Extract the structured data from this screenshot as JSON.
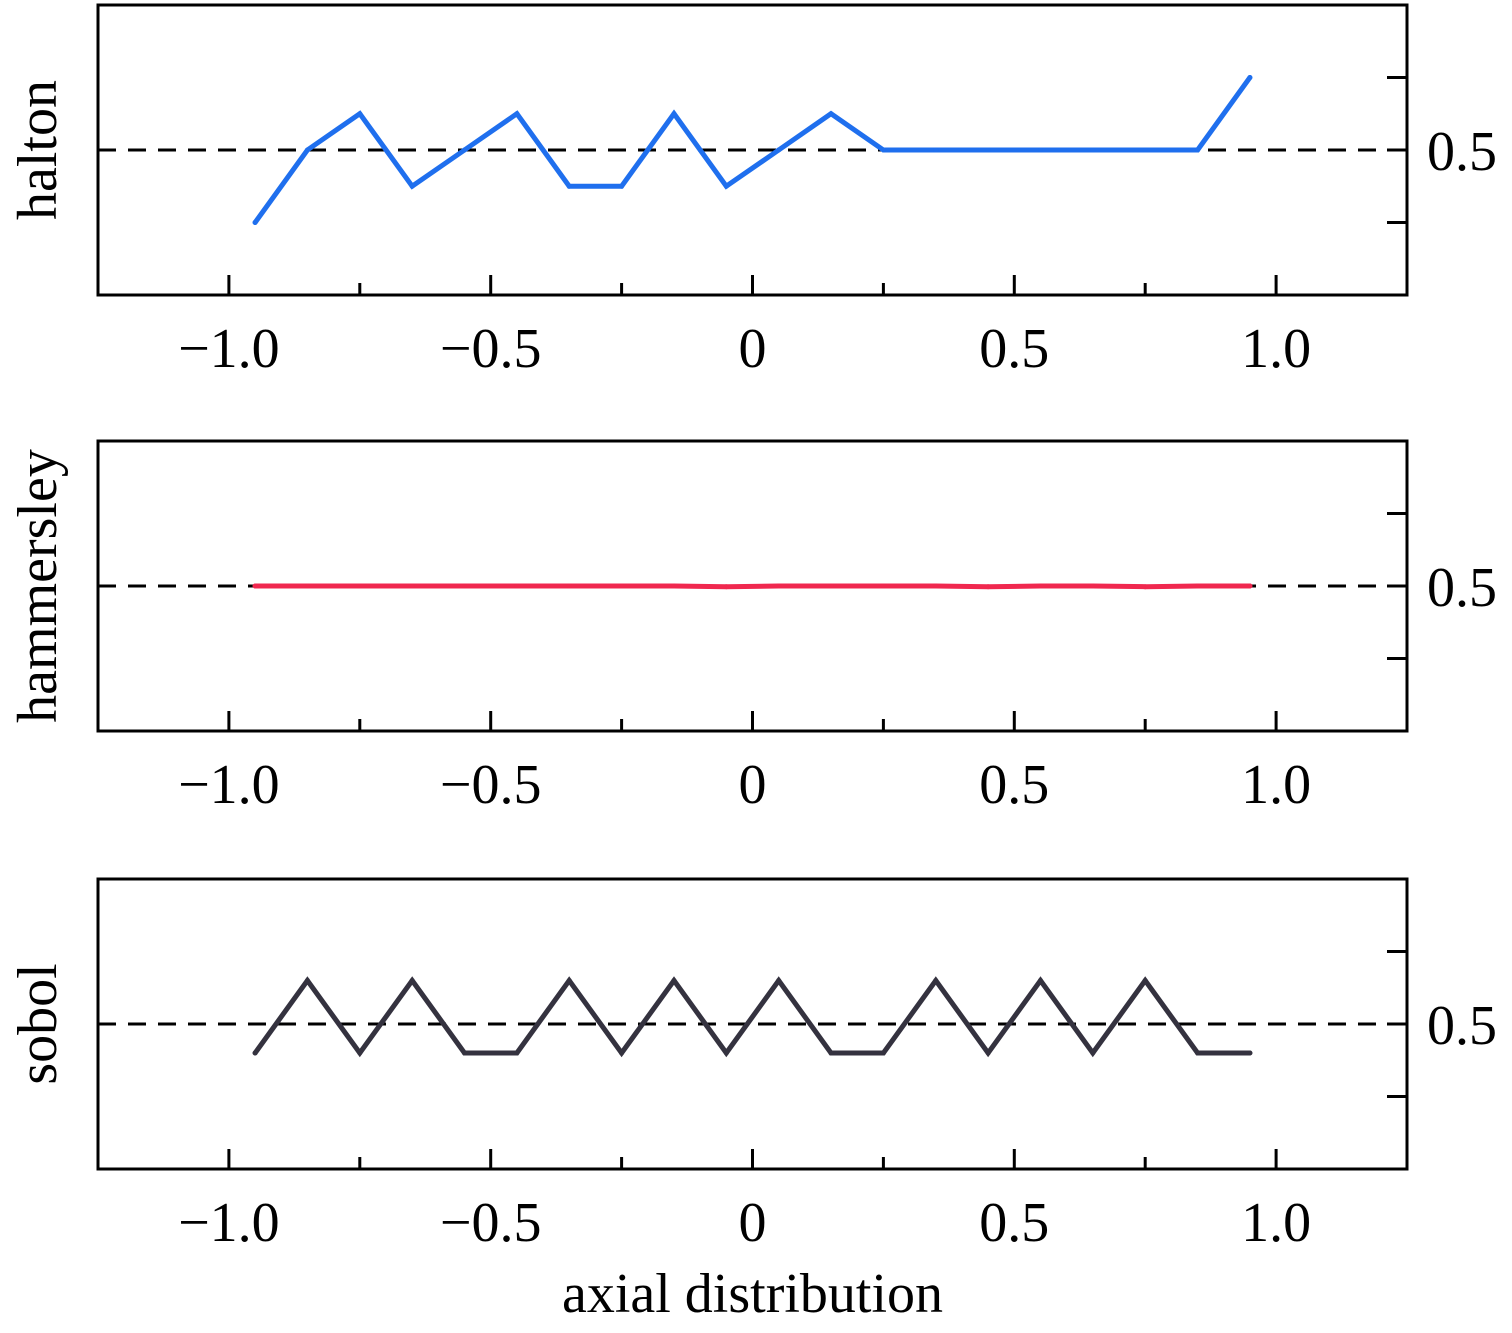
{
  "chart_data": [
    {
      "type": "line",
      "ylabel": "halton",
      "xlabel": "",
      "xlim": [
        -1.25,
        1.25
      ],
      "ylim": [
        0.3,
        0.7
      ],
      "x_ticks": [
        -1.0,
        -0.5,
        0,
        0.5,
        1.0
      ],
      "x_tick_labels": [
        "−1.0",
        "−0.5",
        "0",
        "0.5",
        "1.0"
      ],
      "x_minor_ticks": [
        -0.75,
        -0.25,
        0.25,
        0.75
      ],
      "y_ticks_right": [
        0.4,
        0.5,
        0.6
      ],
      "y_tick_labels_right": [
        "",
        "0.5",
        ""
      ],
      "reference_line": 0.5,
      "color": "#1f6fee",
      "x": [
        -0.95,
        -0.85,
        -0.75,
        -0.65,
        -0.55,
        -0.45,
        -0.35,
        -0.25,
        -0.15,
        -0.05,
        0.05,
        0.15,
        0.25,
        0.35,
        0.45,
        0.55,
        0.65,
        0.75,
        0.85,
        0.95
      ],
      "y": [
        0.4,
        0.5,
        0.55,
        0.45,
        0.5,
        0.55,
        0.45,
        0.45,
        0.55,
        0.45,
        0.5,
        0.55,
        0.5,
        0.5,
        0.5,
        0.5,
        0.5,
        0.5,
        0.5,
        0.6
      ]
    },
    {
      "type": "line",
      "ylabel": "hammersley",
      "xlabel": "",
      "xlim": [
        -1.25,
        1.25
      ],
      "ylim": [
        0.3,
        0.7
      ],
      "x_ticks": [
        -1.0,
        -0.5,
        0,
        0.5,
        1.0
      ],
      "x_tick_labels": [
        "−1.0",
        "−0.5",
        "0",
        "0.5",
        "1.0"
      ],
      "x_minor_ticks": [
        -0.75,
        -0.25,
        0.25,
        0.75
      ],
      "y_ticks_right": [
        0.4,
        0.5,
        0.6
      ],
      "y_tick_labels_right": [
        "",
        "0.5",
        ""
      ],
      "reference_line": 0.5,
      "color": "#f0284f",
      "x": [
        -0.95,
        -0.85,
        -0.75,
        -0.65,
        -0.55,
        -0.45,
        -0.35,
        -0.25,
        -0.15,
        -0.05,
        0.05,
        0.15,
        0.25,
        0.35,
        0.45,
        0.55,
        0.65,
        0.75,
        0.85,
        0.95
      ],
      "y": [
        0.5,
        0.5,
        0.5,
        0.5,
        0.5,
        0.5,
        0.5,
        0.5,
        0.5,
        0.499,
        0.5,
        0.5,
        0.5,
        0.5,
        0.499,
        0.5,
        0.5,
        0.499,
        0.5,
        0.5
      ]
    },
    {
      "type": "line",
      "ylabel": "sobol",
      "xlabel": "axial distribution",
      "xlim": [
        -1.25,
        1.25
      ],
      "ylim": [
        0.3,
        0.7
      ],
      "x_ticks": [
        -1.0,
        -0.5,
        0,
        0.5,
        1.0
      ],
      "x_tick_labels": [
        "−1.0",
        "−0.5",
        "0",
        "0.5",
        "1.0"
      ],
      "x_minor_ticks": [
        -0.75,
        -0.25,
        0.25,
        0.75
      ],
      "y_ticks_right": [
        0.4,
        0.5,
        0.6
      ],
      "y_tick_labels_right": [
        "",
        "0.5",
        ""
      ],
      "reference_line": 0.5,
      "color": "#34323f",
      "x": [
        -0.95,
        -0.85,
        -0.75,
        -0.65,
        -0.55,
        -0.45,
        -0.35,
        -0.25,
        -0.15,
        -0.05,
        0.05,
        0.15,
        0.25,
        0.35,
        0.45,
        0.55,
        0.65,
        0.75,
        0.85,
        0.95
      ],
      "y": [
        0.46,
        0.56,
        0.46,
        0.56,
        0.46,
        0.46,
        0.56,
        0.46,
        0.56,
        0.46,
        0.56,
        0.46,
        0.46,
        0.56,
        0.46,
        0.56,
        0.46,
        0.56,
        0.46,
        0.46
      ]
    }
  ]
}
